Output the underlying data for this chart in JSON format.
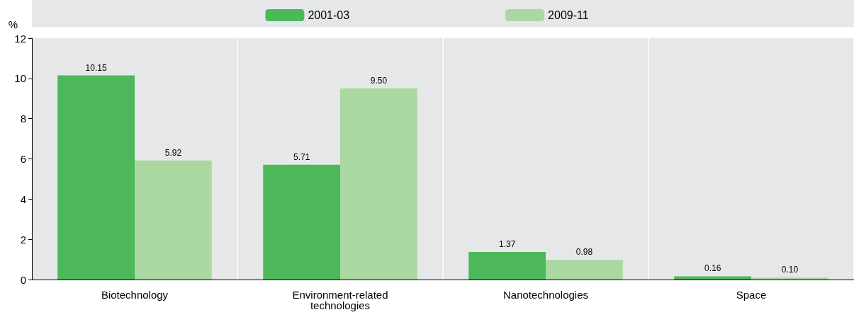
{
  "chart_data": {
    "type": "bar",
    "ylabel": "%",
    "categories": [
      "Biotechnology",
      "Environment-related\ntechnologies",
      "Nanotechnologies",
      "Space"
    ],
    "series": [
      {
        "name": "2001-03",
        "color": "#4cb85a",
        "values": [
          10.15,
          5.71,
          1.37,
          0.16
        ],
        "value_labels": [
          "10.15",
          "5.71",
          "1.37",
          "0.16"
        ]
      },
      {
        "name": "2009-11",
        "color": "#a9d9a0",
        "values": [
          5.92,
          9.5,
          0.98,
          0.1
        ],
        "value_labels": [
          "5.92",
          "9.50",
          "0.98",
          "0.10"
        ]
      }
    ],
    "ylim": [
      0,
      12
    ],
    "yticks": [
      0,
      2,
      4,
      6,
      8,
      10,
      12
    ],
    "grid": "x",
    "legend": "top"
  }
}
